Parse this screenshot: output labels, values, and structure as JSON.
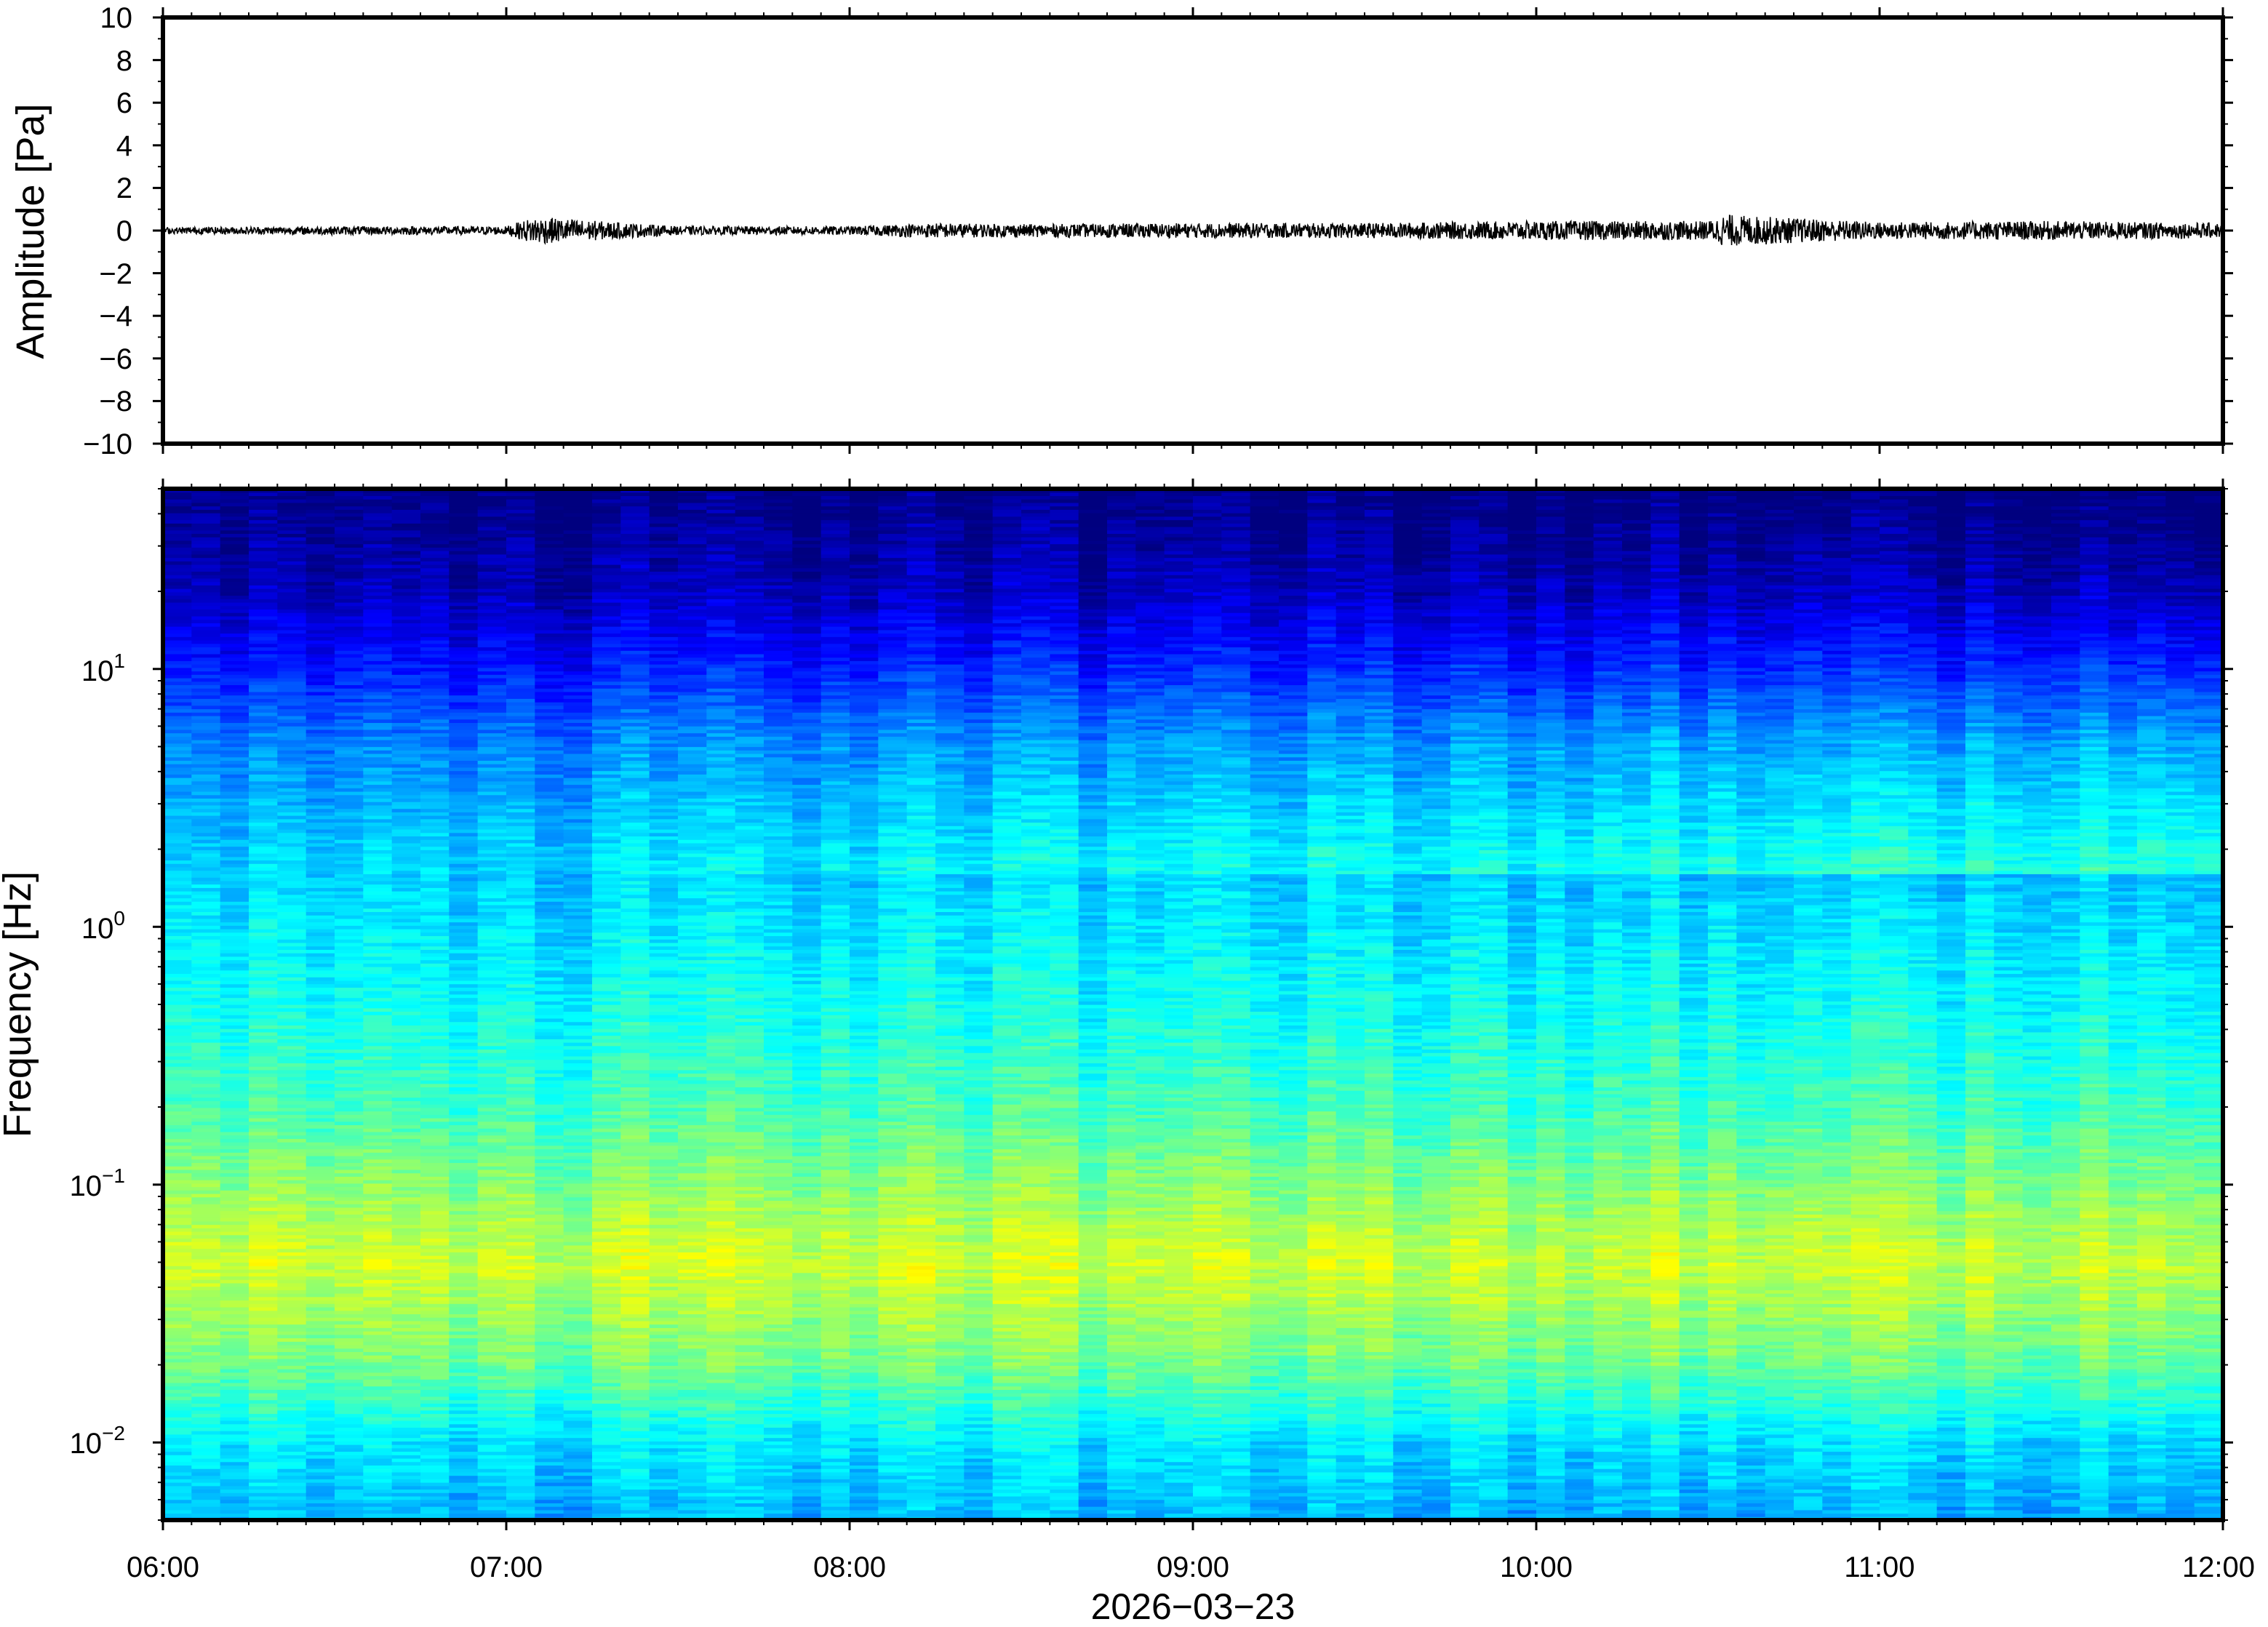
{
  "chart_data": [
    {
      "type": "line",
      "panel": "waveform",
      "ylabel": "Amplitude [Pa]",
      "ylim": [
        -10,
        10
      ],
      "yticks": [
        {
          "value": 10,
          "label": "10"
        },
        {
          "value": 8,
          "label": "8"
        },
        {
          "value": 6,
          "label": "6"
        },
        {
          "value": 4,
          "label": "4"
        },
        {
          "value": 2,
          "label": "2"
        },
        {
          "value": 0,
          "label": "0"
        },
        {
          "value": -2,
          "label": "−2"
        },
        {
          "value": -4,
          "label": "−4"
        },
        {
          "value": -6,
          "label": "−6"
        },
        {
          "value": -8,
          "label": "−8"
        },
        {
          "value": -10,
          "label": "−10"
        }
      ],
      "xlim": [
        "06:00",
        "12:00"
      ],
      "envelope": {
        "times": [
          "06:00",
          "06:30",
          "07:00",
          "07:05",
          "07:30",
          "08:00",
          "08:15",
          "08:30",
          "09:00",
          "09:30",
          "10:00",
          "10:30",
          "10:33",
          "11:00",
          "11:30",
          "12:00"
        ],
        "amplitude_pa": [
          0.15,
          0.2,
          0.2,
          0.65,
          0.2,
          0.2,
          0.35,
          0.3,
          0.35,
          0.35,
          0.45,
          0.45,
          0.75,
          0.4,
          0.45,
          0.35
        ]
      },
      "line_color": "#000000",
      "grid": false
    },
    {
      "type": "heatmap",
      "panel": "spectrogram",
      "ylabel": "Frequency [Hz]",
      "yscale": "log",
      "ylim": [
        0.005,
        50
      ],
      "yticks": [
        {
          "value": 10,
          "base": "10",
          "exp": "1"
        },
        {
          "value": 1,
          "base": "10",
          "exp": "0"
        },
        {
          "value": 0.1,
          "base": "10",
          "exp": "−1"
        },
        {
          "value": 0.01,
          "base": "10",
          "exp": "−2"
        }
      ],
      "xlabel": "2026−03−23",
      "xlim": [
        "06:00",
        "12:00"
      ],
      "xticks": [
        "06:00",
        "07:00",
        "08:00",
        "09:00",
        "10:00",
        "11:00",
        "12:00"
      ],
      "colormap": "jet",
      "colormap_colors": [
        "#00007f",
        "#0000ff",
        "#007fff",
        "#00ffff",
        "#7fff7f",
        "#ffff00",
        "#ff7f00",
        "#ff0000"
      ],
      "time_columns": 72,
      "relative_power": {
        "freq_hz": [
          0.005,
          0.01,
          0.02,
          0.05,
          0.1,
          0.2,
          0.5,
          1,
          2,
          5,
          10,
          20,
          50
        ],
        "level_0_to_1": [
          0.34,
          0.4,
          0.55,
          0.66,
          0.58,
          0.5,
          0.44,
          0.4,
          0.36,
          0.28,
          0.16,
          0.06,
          0.0
        ]
      },
      "grid": false
    }
  ]
}
